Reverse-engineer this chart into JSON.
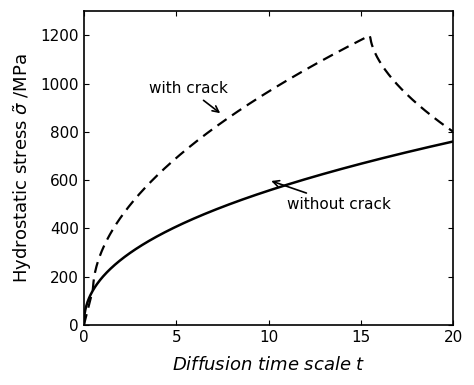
{
  "title": "",
  "xlabel": "Diffusion time scale $t$",
  "ylabel": "Hydrostatic stress $\\tilde{\\sigma}$ /MPa",
  "xlim": [
    0,
    20
  ],
  "ylim": [
    0,
    1300
  ],
  "xticks": [
    0,
    5,
    10,
    15,
    20
  ],
  "yticks": [
    0,
    200,
    400,
    600,
    800,
    1000,
    1200
  ],
  "with_crack_label": "with crack",
  "without_crack_label": "without crack",
  "background_color": "#ffffff",
  "line_color": "#000000",
  "annotation_fontsize": 11,
  "axis_label_fontsize": 13
}
